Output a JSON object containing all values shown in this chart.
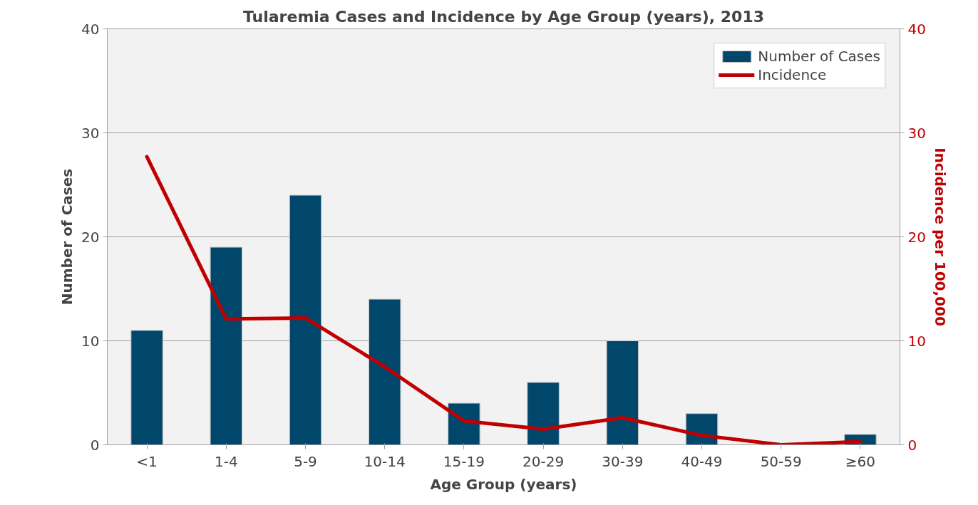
{
  "chart_data": {
    "type": "bar",
    "title": "Tularemia Cases and Incidence by Age Group (years), 2013",
    "xlabel": "Age Group (years)",
    "ylabel": "Number of Cases",
    "y2label": "Incidence per 100,000",
    "categories": [
      "<1",
      "1-4",
      "5-9",
      "10-14",
      "15-19",
      "20-29",
      "30-39",
      "40-49",
      "50-59",
      "≥60"
    ],
    "series": [
      {
        "name": "Number of Cases",
        "color": "#00476b",
        "values": [
          11,
          19,
          24,
          14,
          4,
          6,
          10,
          3,
          0,
          1
        ]
      },
      {
        "name": "Incidence",
        "type": "line",
        "axis": "y2",
        "color": "#c00000",
        "values": [
          27.7,
          12.1,
          12.2,
          7.5,
          2.3,
          1.5,
          2.6,
          0.9,
          0,
          0.3
        ]
      }
    ],
    "ylim": [
      0,
      40
    ],
    "yticks": [
      0,
      10,
      20,
      30,
      40
    ],
    "y2lim": [
      0,
      40
    ],
    "y2ticks": [
      0,
      10,
      20,
      30,
      40
    ],
    "grid": "y",
    "legend": "top right"
  }
}
